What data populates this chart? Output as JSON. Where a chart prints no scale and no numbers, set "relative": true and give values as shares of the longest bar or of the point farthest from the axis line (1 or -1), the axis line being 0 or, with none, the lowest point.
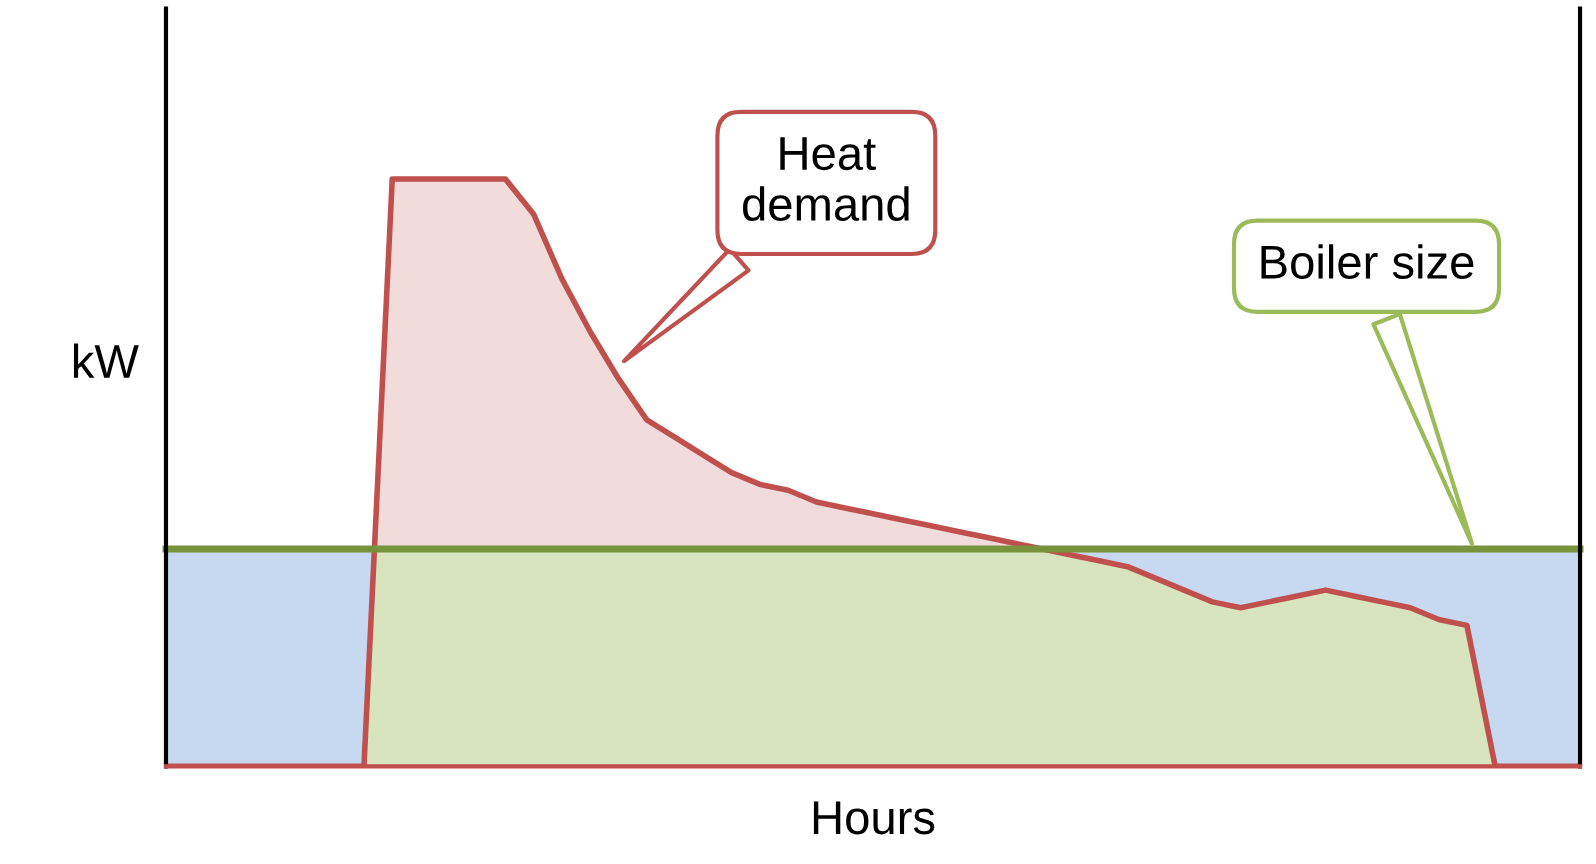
{
  "chart_data": {
    "type": "area",
    "relative": true,
    "xlabel": "Hours",
    "ylabel": "kW",
    "tick_labels": false,
    "colors": [
      "#f2dcdb",
      "#d7e4bd"
    ],
    "bands": [
      {
        "axis": "y",
        "from": 0,
        "to": 0.37,
        "color": "#c6d9f1"
      }
    ],
    "categories": [
      null,
      null,
      null,
      null,
      null,
      null,
      null,
      null,
      null,
      null,
      null,
      null,
      null,
      null,
      null,
      null,
      null,
      null,
      null,
      null,
      null,
      null,
      null,
      null,
      null,
      null,
      null,
      null,
      null,
      null,
      null,
      null,
      null,
      null,
      null,
      null,
      null,
      null,
      null,
      null,
      null,
      null,
      null,
      null,
      null,
      null,
      null,
      null,
      null,
      null,
      null
    ],
    "series": [
      {
        "values": [
          0,
          0,
          0,
          0,
          0,
          0,
          0,
          0,
          1,
          1,
          1,
          1,
          1,
          0.94,
          0.83,
          0.74,
          0.66,
          0.59,
          0.56,
          0.53,
          0.5,
          0.48,
          0.47,
          0.45,
          0.44,
          0.43,
          0.42,
          0.41,
          0.4,
          0.39,
          0.38,
          0.37,
          0.36,
          0.35,
          0.34,
          0.32,
          0.3,
          0.28,
          0.27,
          0.28,
          0.29,
          0.3,
          0.29,
          0.28,
          0.27,
          0.25,
          0.24,
          0,
          0,
          0,
          0
        ],
        "color": "#c0504d"
      }
    ],
    "ref_lines": [
      {
        "axis": "y",
        "value": 0.37,
        "label": "Boiler size",
        "color": "#77933c"
      }
    ],
    "annotations": [
      "Heat demand"
    ]
  }
}
